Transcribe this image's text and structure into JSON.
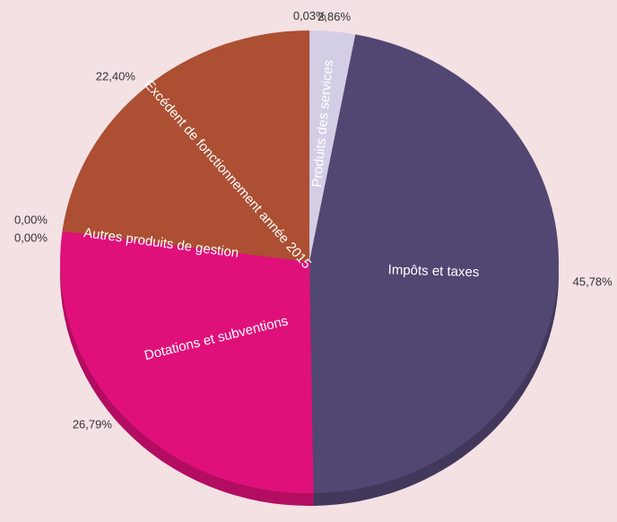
{
  "chart_data": {
    "type": "pie",
    "categories": [
      null,
      "Produits des services",
      "Impôts et taxes",
      "Dotations et subventions",
      null,
      "Autres produits de gestion",
      "Excédent de fonctionnement année 2015"
    ],
    "values": [
      0.03,
      2.86,
      45.78,
      26.79,
      0,
      0,
      22.4
    ],
    "value_labels": [
      "0,03%",
      "2,86%",
      "45,78%",
      "26,79%",
      "0,00%",
      "0,00%",
      "22,40%"
    ],
    "colors": [
      "#b9b0d8",
      "#d4cde6",
      "#524673",
      "#e0107a",
      "#f0e600",
      "#f5ee00",
      "#ac4f33"
    ]
  }
}
